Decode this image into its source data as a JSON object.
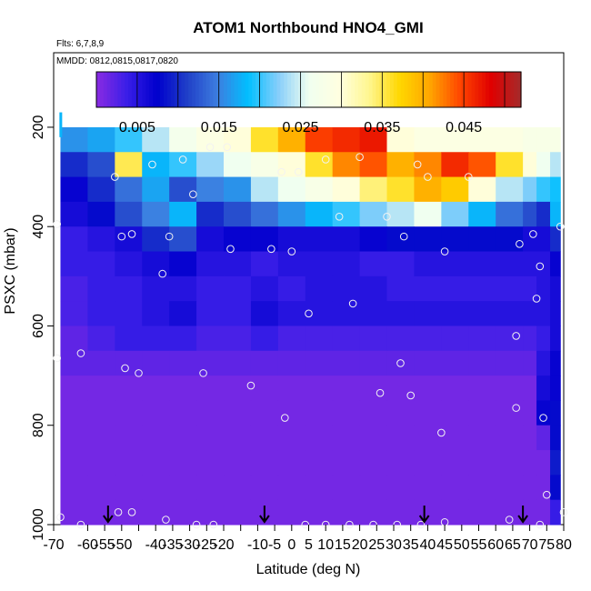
{
  "chart_data": {
    "type": "heatmap",
    "title": "ATOM1 Northbound HNO4_GMI",
    "note_flights": "Flts: 6,7,8,9",
    "note_dates": "MMDD: 0812,0815,0817,0820",
    "xlabel": "Latitude (deg N)",
    "ylabel": "PSXC (mbar)",
    "xlim": [
      -70,
      80
    ],
    "ylim": [
      1000,
      50
    ],
    "x_ticks": [
      -70,
      -55,
      -40,
      -25,
      -10,
      0,
      10,
      20,
      30,
      40,
      50,
      60,
      70,
      80
    ],
    "x_tick_labels": [
      "-70",
      "-55",
      "-40",
      "-25",
      "-10",
      "0",
      "10",
      "20",
      "30",
      "40",
      "50",
      "60",
      "70",
      "80"
    ],
    "x_minor_ticks": [
      -60,
      -50,
      -45,
      -35,
      -30,
      -20,
      -15,
      -5,
      5,
      15,
      25,
      35,
      45,
      55,
      65,
      75
    ],
    "x_minor_tick_labels": [
      "-60",
      "-50",
      "",
      "-35",
      "-30",
      "-20",
      "",
      "-5",
      "5",
      "15",
      "25",
      "35",
      "45",
      "55",
      "65",
      "75"
    ],
    "y_ticks": [
      200,
      400,
      600,
      800,
      1000
    ],
    "y_tick_labels": [
      "200",
      "400",
      "600",
      "800",
      "1000"
    ],
    "colorbar": {
      "range": [
        0,
        0.052
      ],
      "tick_values": [
        0.005,
        0.015,
        0.025,
        0.035,
        0.045
      ],
      "tick_labels": [
        "0.005",
        "0.015",
        "0.025",
        "0.035",
        "0.045"
      ],
      "colors": [
        "#8a2be2",
        "#3a1ee8",
        "#0000cd",
        "#2040c8",
        "#3d7ee0",
        "#00bfff",
        "#87cefa",
        "#f0fff0",
        "#ffffe0",
        "#fff68f",
        "#ffd700",
        "#ffa500",
        "#ff4500",
        "#e00000",
        "#a52a2a"
      ]
    },
    "levels_mbar": [
      225,
      275,
      325,
      375,
      425,
      475,
      525,
      575,
      625,
      675,
      725,
      775,
      825,
      875,
      925,
      975
    ],
    "lat_breaks": [
      -68,
      -60,
      -52,
      -44,
      -36,
      -28,
      -20,
      -12,
      -4,
      4,
      12,
      20,
      28,
      36,
      44,
      52,
      60,
      68,
      72,
      76,
      79
    ],
    "grid_values": [
      [
        0.016,
        0.017,
        0.02,
        0.024,
        0.027,
        0.029,
        0.03,
        0.036,
        0.04,
        0.045,
        0.046,
        0.047,
        0.03,
        0.029,
        0.029,
        0.029,
        0.029,
        0.028,
        0.028,
        0.028
      ],
      [
        0.01,
        0.012,
        0.035,
        0.018,
        0.02,
        0.023,
        0.026,
        0.028,
        0.03,
        0.036,
        0.042,
        0.044,
        0.04,
        0.042,
        0.046,
        0.044,
        0.036,
        0.03,
        0.026,
        0.024
      ],
      [
        0.007,
        0.01,
        0.014,
        0.017,
        0.012,
        0.015,
        0.016,
        0.024,
        0.026,
        0.028,
        0.03,
        0.034,
        0.036,
        0.04,
        0.038,
        0.03,
        0.024,
        0.022,
        0.02,
        0.019
      ],
      [
        0.006,
        0.008,
        0.012,
        0.015,
        0.018,
        0.01,
        0.012,
        0.014,
        0.016,
        0.018,
        0.02,
        0.022,
        0.024,
        0.026,
        0.022,
        0.018,
        0.014,
        0.012,
        0.01,
        0.018
      ],
      [
        0.004,
        0.005,
        0.006,
        0.01,
        0.012,
        0.006,
        0.007,
        0.007,
        0.006,
        0.006,
        0.006,
        0.007,
        0.008,
        0.008,
        0.008,
        0.008,
        0.008,
        0.006,
        0.006,
        0.01
      ],
      [
        0.004,
        0.004,
        0.005,
        0.006,
        0.007,
        0.005,
        0.005,
        0.004,
        0.005,
        0.005,
        0.005,
        0.004,
        0.004,
        0.005,
        0.005,
        0.005,
        0.005,
        0.005,
        0.005,
        0.007
      ],
      [
        0.003,
        0.004,
        0.004,
        0.005,
        0.005,
        0.004,
        0.004,
        0.005,
        0.004,
        0.005,
        0.005,
        0.005,
        0.004,
        0.004,
        0.004,
        0.004,
        0.004,
        0.004,
        0.005,
        0.006
      ],
      [
        0.003,
        0.004,
        0.004,
        0.005,
        0.006,
        0.004,
        0.004,
        0.006,
        0.005,
        0.005,
        0.005,
        0.005,
        0.005,
        0.005,
        0.005,
        0.005,
        0.005,
        0.005,
        0.005,
        0.006
      ],
      [
        0.002,
        0.003,
        0.004,
        0.004,
        0.004,
        0.003,
        0.003,
        0.004,
        0.003,
        0.003,
        0.003,
        0.003,
        0.003,
        0.003,
        0.003,
        0.003,
        0.003,
        0.003,
        0.004,
        0.006
      ],
      [
        0.002,
        0.002,
        0.002,
        0.002,
        0.002,
        0.002,
        0.002,
        0.002,
        0.002,
        0.002,
        0.002,
        0.002,
        0.002,
        0.002,
        0.002,
        0.002,
        0.002,
        0.002,
        0.005,
        0.007
      ],
      [
        0.001,
        0.001,
        0.001,
        0.001,
        0.001,
        0.001,
        0.001,
        0.001,
        0.001,
        0.001,
        0.001,
        0.001,
        0.001,
        0.001,
        0.001,
        0.001,
        0.001,
        0.001,
        0.006,
        0.007
      ],
      [
        0.001,
        0.001,
        0.001,
        0.001,
        0.001,
        0.001,
        0.001,
        0.001,
        0.001,
        0.001,
        0.001,
        0.001,
        0.001,
        0.001,
        0.001,
        0.001,
        0.001,
        0.001,
        0.007,
        0.008
      ],
      [
        0.001,
        0.001,
        0.001,
        0.001,
        0.001,
        0.001,
        0.001,
        0.001,
        0.001,
        0.001,
        0.001,
        0.001,
        0.001,
        0.001,
        0.001,
        0.001,
        0.001,
        0.001,
        0.002,
        0.008
      ],
      [
        0.001,
        0.001,
        0.001,
        0.001,
        0.001,
        0.001,
        0.001,
        0.001,
        0.001,
        0.001,
        0.001,
        0.001,
        0.001,
        0.001,
        0.001,
        0.001,
        0.001,
        0.001,
        0.001,
        0.009
      ],
      [
        0.001,
        0.001,
        0.001,
        0.001,
        0.001,
        0.001,
        0.001,
        0.001,
        0.001,
        0.001,
        0.001,
        0.001,
        0.001,
        0.001,
        0.001,
        0.001,
        0.001,
        0.001,
        0.001,
        0.008
      ],
      [
        0.001,
        0.001,
        0.001,
        0.001,
        0.001,
        0.001,
        0.001,
        0.001,
        0.001,
        0.001,
        0.001,
        0.001,
        0.001,
        0.001,
        0.001,
        0.001,
        0.001,
        0.001,
        0.001,
        0.004
      ]
    ],
    "observation_points": [
      {
        "lat": -69,
        "p": 395
      },
      {
        "lat": -69,
        "p": 665
      },
      {
        "lat": -62,
        "p": 655
      },
      {
        "lat": -52,
        "p": 300
      },
      {
        "lat": -50,
        "p": 420
      },
      {
        "lat": -47,
        "p": 415
      },
      {
        "lat": -49,
        "p": 685
      },
      {
        "lat": -45,
        "p": 695
      },
      {
        "lat": -41,
        "p": 275
      },
      {
        "lat": -38,
        "p": 495
      },
      {
        "lat": -36,
        "p": 420
      },
      {
        "lat": -32,
        "p": 265
      },
      {
        "lat": -29,
        "p": 335
      },
      {
        "lat": -26,
        "p": 695
      },
      {
        "lat": -24,
        "p": 240
      },
      {
        "lat": -19,
        "p": 240
      },
      {
        "lat": -18,
        "p": 445
      },
      {
        "lat": -12,
        "p": 720
      },
      {
        "lat": -6,
        "p": 445
      },
      {
        "lat": -3,
        "p": 290
      },
      {
        "lat": -2,
        "p": 785
      },
      {
        "lat": 0,
        "p": 450
      },
      {
        "lat": 2,
        "p": 290
      },
      {
        "lat": 5,
        "p": 575
      },
      {
        "lat": 10,
        "p": 265
      },
      {
        "lat": 14,
        "p": 380
      },
      {
        "lat": 18,
        "p": 555
      },
      {
        "lat": 20,
        "p": 260
      },
      {
        "lat": 26,
        "p": 735
      },
      {
        "lat": 28,
        "p": 380
      },
      {
        "lat": 32,
        "p": 675
      },
      {
        "lat": 35,
        "p": 740
      },
      {
        "lat": 33,
        "p": 420
      },
      {
        "lat": 37,
        "p": 275
      },
      {
        "lat": 40,
        "p": 300
      },
      {
        "lat": 44,
        "p": 815
      },
      {
        "lat": 45,
        "p": 450
      },
      {
        "lat": 52,
        "p": 300
      },
      {
        "lat": 66,
        "p": 620
      },
      {
        "lat": 67,
        "p": 435
      },
      {
        "lat": 66,
        "p": 765
      },
      {
        "lat": 71,
        "p": 415
      },
      {
        "lat": 72,
        "p": 545
      },
      {
        "lat": 73,
        "p": 480
      },
      {
        "lat": 74,
        "p": 785
      },
      {
        "lat": 75,
        "p": 940
      },
      {
        "lat": 79,
        "p": 400
      },
      {
        "lat": 80,
        "p": 975
      },
      {
        "lat": -68,
        "p": 985
      },
      {
        "lat": -62,
        "p": 1000
      },
      {
        "lat": -51,
        "p": 975
      },
      {
        "lat": -47,
        "p": 975
      },
      {
        "lat": -37,
        "p": 990
      },
      {
        "lat": -28,
        "p": 1000
      },
      {
        "lat": -23,
        "p": 1000
      },
      {
        "lat": 4,
        "p": 1000
      },
      {
        "lat": 10,
        "p": 1000
      },
      {
        "lat": 17,
        "p": 1000
      },
      {
        "lat": 24,
        "p": 1000
      },
      {
        "lat": 31,
        "p": 1000
      },
      {
        "lat": 38,
        "p": 1000
      },
      {
        "lat": 45,
        "p": 995
      },
      {
        "lat": 64,
        "p": 990
      },
      {
        "lat": 73,
        "p": 1000
      }
    ],
    "arrow_markers_lat": [
      -54,
      -8,
      39,
      68
    ]
  }
}
